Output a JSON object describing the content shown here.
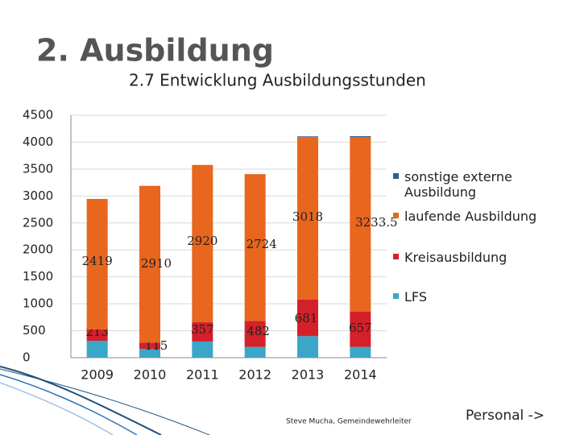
{
  "chart_data": {
    "type": "stacked_bar",
    "title": "2. Ausbildung",
    "subtitle": "2.7 Entwicklung Ausbildungsstunden",
    "categories": [
      "2009",
      "2010",
      "2011",
      "2012",
      "2013",
      "2014"
    ],
    "series": [
      {
        "name": "LFS",
        "color": "#3aa6c8",
        "values": [
          314,
          164,
          300,
          200,
          400,
          200
        ]
      },
      {
        "name": "Kreisausbildung",
        "color": "#d4202a",
        "values": [
          213,
          115,
          357,
          482,
          681,
          657
        ]
      },
      {
        "name": "laufende Ausbildung",
        "color": "#e8661e",
        "values": [
          2419,
          2910,
          2920,
          2724,
          3018,
          3233.5
        ]
      },
      {
        "name": "sonstige externe Ausbildung",
        "color": "#2b5f8a",
        "values": [
          0,
          0,
          0,
          0,
          10,
          20
        ]
      }
    ],
    "ylim": [
      0,
      4500
    ],
    "yticks": [
      0,
      500,
      1000,
      1500,
      2000,
      2500,
      3000,
      3500,
      4000,
      4500
    ],
    "grid": true,
    "legend": "right",
    "footer": "Steve Mucha, Gemeindewehrleiter",
    "link": "Personal ->"
  }
}
